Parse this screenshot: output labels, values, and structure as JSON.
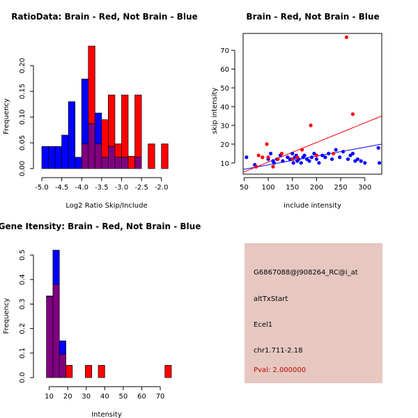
{
  "colors": {
    "red": "#ff0000",
    "blue": "#0000ff",
    "overlap": "#800080",
    "panel_bg": "#e6c8c0",
    "pval": "#c00000"
  },
  "chart_data": [
    {
      "type": "histogram",
      "title": "RatioData: Brain - Red, Not Brain - Blue",
      "xlabel": "Log2 Ratio Skip/Include",
      "ylabel": "Frequency",
      "xlim": [
        -5.0,
        -1.75
      ],
      "ylim": [
        0,
        0.23
      ],
      "xticks": [
        -5.0,
        -4.5,
        -4.0,
        -3.5,
        -3.0,
        -2.5,
        -2.0
      ],
      "xtick_labels": [
        "-5.0",
        "-4.5",
        "-4.0",
        "-3.5",
        "-3.0",
        "-2.5",
        "-2.0"
      ],
      "yticks": [
        0.0,
        0.05,
        0.1,
        0.15,
        0.2
      ],
      "ytick_labels": [
        "0.00",
        "0.05",
        "0.10",
        "0.15",
        "0.20"
      ],
      "bin_width": 0.1667,
      "bin_starts": [
        -5.0,
        -4.833,
        -4.667,
        -4.5,
        -4.333,
        -4.167,
        -4.0,
        -3.833,
        -3.667,
        -3.5,
        -3.333,
        -3.167,
        -3.0,
        -2.833,
        -2.667,
        -2.5,
        -2.333,
        -2.167,
        -2.0
      ],
      "series": [
        {
          "name": "Not Brain",
          "color": "blue",
          "values": [
            0.043,
            0.043,
            0.043,
            0.065,
            0.13,
            0.022,
            0.174,
            0.087,
            0.108,
            0.022,
            0.043,
            0.022,
            0.022,
            0.0,
            0.022,
            0.0,
            0.0,
            0.0,
            0.0
          ]
        },
        {
          "name": "Brain",
          "color": "red",
          "values": [
            0.0,
            0.0,
            0.0,
            0.0,
            0.0,
            0.0,
            0.048,
            0.238,
            0.048,
            0.095,
            0.143,
            0.048,
            0.143,
            0.024,
            0.143,
            0.0,
            0.048,
            0.0,
            0.048
          ]
        }
      ]
    },
    {
      "type": "scatter",
      "title": "Brain - Red, Not Brain - Blue",
      "xlabel": "include intensity",
      "ylabel": "skip intensity",
      "xlim": [
        48,
        335
      ],
      "ylim": [
        4,
        79
      ],
      "xticks": [
        50,
        100,
        150,
        200,
        250,
        300
      ],
      "xtick_labels": [
        "50",
        "100",
        "150",
        "200",
        "250",
        "300"
      ],
      "yticks": [
        10,
        20,
        30,
        40,
        50,
        60,
        70
      ],
      "ytick_labels": [
        "10",
        "20",
        "30",
        "40",
        "50",
        "60",
        "70"
      ],
      "series": [
        {
          "name": "Not Brain",
          "color": "blue",
          "x": [
            55,
            72,
            100,
            105,
            110,
            112,
            118,
            125,
            130,
            140,
            145,
            150,
            152,
            155,
            158,
            160,
            163,
            168,
            172,
            175,
            180,
            185,
            190,
            195,
            200,
            205,
            212,
            218,
            225,
            232,
            240,
            248,
            255,
            265,
            270,
            275,
            280,
            285,
            292,
            300,
            328,
            330
          ],
          "y": [
            13,
            9,
            12,
            15,
            11,
            10,
            12,
            14,
            11,
            13,
            12,
            15,
            10,
            13,
            14,
            11,
            12,
            10,
            13,
            14,
            12,
            11,
            13,
            15,
            12,
            10,
            14,
            13,
            15,
            12,
            17,
            13,
            16,
            12,
            14,
            15,
            11,
            12,
            11,
            10,
            18,
            10
          ]
        },
        {
          "name": "Brain",
          "color": "red",
          "x": [
            75,
            80,
            88,
            97,
            100,
            110,
            120,
            128,
            150,
            160,
            170,
            188,
            200,
            235,
            262,
            275
          ],
          "y": [
            8,
            14,
            13,
            20,
            13,
            8,
            12,
            15,
            12,
            13,
            17,
            30,
            14,
            15,
            77,
            36
          ]
        }
      ],
      "fit_lines": [
        {
          "color": "red",
          "x": [
            48,
            335
          ],
          "y": [
            5,
            35
          ]
        },
        {
          "color": "blue",
          "x": [
            48,
            335
          ],
          "y": [
            6.5,
            20
          ]
        }
      ]
    },
    {
      "type": "histogram",
      "title": "Gene Itensity: Brain - Red, Not Brain - Blue",
      "xlabel": "Intensity",
      "ylabel": "Frequency",
      "xlim": [
        6,
        76
      ],
      "ylim": [
        0,
        0.56
      ],
      "xticks": [
        10,
        20,
        30,
        40,
        50,
        60,
        70
      ],
      "xtick_labels": [
        "10",
        "20",
        "30",
        "40",
        "50",
        "60",
        "70"
      ],
      "yticks": [
        0.0,
        0.1,
        0.2,
        0.3,
        0.4,
        0.5
      ],
      "ytick_labels": [
        "0.0",
        "0.1",
        "0.2",
        "0.3",
        "0.4",
        "0.5"
      ],
      "bin_width": 3.5,
      "bin_starts": [
        8.5,
        12,
        15.5,
        19,
        29.5,
        36.5,
        72.5
      ],
      "series": [
        {
          "name": "Not Brain",
          "color": "blue",
          "values": [
            0.333,
            0.52,
            0.15,
            0.0,
            0.0,
            0.0,
            0.0
          ]
        },
        {
          "name": "Brain",
          "color": "red",
          "values": [
            0.33,
            0.38,
            0.095,
            0.05,
            0.05,
            0.05,
            0.05
          ]
        }
      ]
    }
  ],
  "info_panel": {
    "probe": "G6867088@J908264_RC@i_at",
    "event": "altTxStart",
    "gene": "Ecel1",
    "location": "chr1.711-2.18",
    "pval": "Pval: 2.000000"
  }
}
